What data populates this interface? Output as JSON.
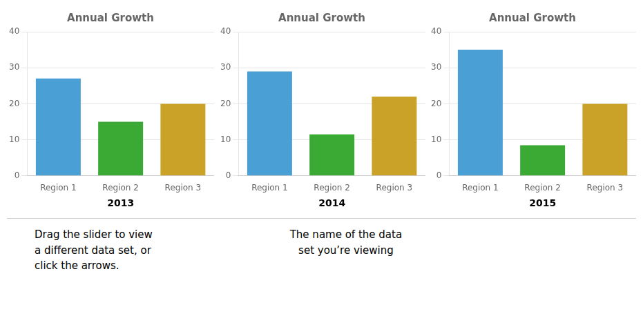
{
  "chart_data": [
    {
      "type": "bar",
      "title": "Annual Growth",
      "xlabel": "2013",
      "categories": [
        "Region 1",
        "Region 2",
        "Region 3"
      ],
      "values": [
        27,
        15,
        20
      ],
      "colors": [
        "#4a9fd4",
        "#3aaa35",
        "#c9a227"
      ],
      "ylim": [
        0,
        40
      ],
      "yticks": [
        0,
        10,
        20,
        30,
        40
      ],
      "grid": true
    },
    {
      "type": "bar",
      "title": "Annual Growth",
      "xlabel": "2014",
      "categories": [
        "Region 1",
        "Region 2",
        "Region 3"
      ],
      "values": [
        29,
        11.5,
        22
      ],
      "colors": [
        "#4a9fd4",
        "#3aaa35",
        "#c9a227"
      ],
      "ylim": [
        0,
        40
      ],
      "yticks": [
        0,
        10,
        20,
        30,
        40
      ],
      "grid": true
    },
    {
      "type": "bar",
      "title": "Annual Growth",
      "xlabel": "2015",
      "categories": [
        "Region 1",
        "Region 2",
        "Region 3"
      ],
      "values": [
        35,
        8.5,
        20
      ],
      "colors": [
        "#4a9fd4",
        "#3aaa35",
        "#c9a227"
      ],
      "ylim": [
        0,
        40
      ],
      "yticks": [
        0,
        10,
        20,
        30,
        40
      ],
      "grid": true
    }
  ],
  "annotations": [
    "Drag the slider to view\na different data set, or\nclick the arrows.",
    "The name of the data\nset you’re viewing"
  ]
}
